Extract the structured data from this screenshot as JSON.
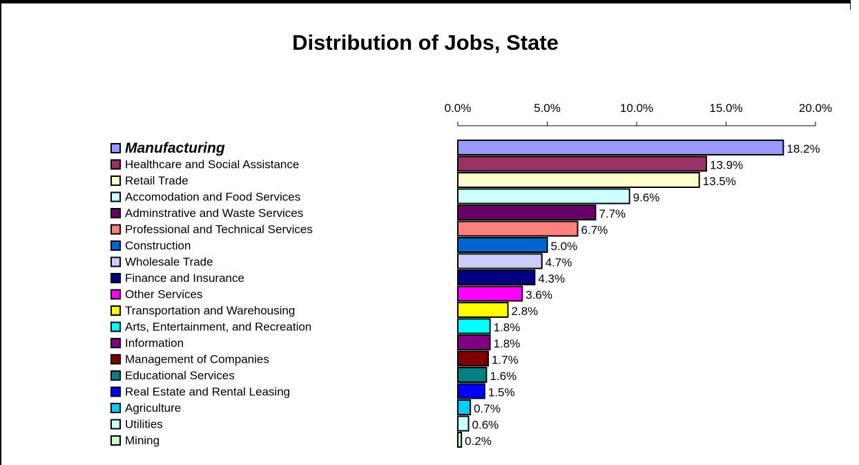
{
  "chart_data": {
    "type": "bar",
    "orientation": "horizontal",
    "title": "Distribution of Jobs, State",
    "xlabel": "",
    "ylabel": "",
    "xlim": [
      0,
      20
    ],
    "ticks": [
      "0.0%",
      "5.0%",
      "10.0%",
      "15.0%",
      "20.0%"
    ],
    "tick_values": [
      0,
      5,
      10,
      15,
      20
    ],
    "legend_position": "left",
    "grid": false,
    "highlighted_category": "Manufacturing",
    "categories": [
      "Manufacturing",
      "Healthcare and Social Assistance",
      "Retail Trade",
      "Accomodation and Food Services",
      "Adminstrative and Waste Services",
      "Professional and Technical Services",
      "Construction",
      "Wholesale Trade",
      "Finance and Insurance",
      "Other Services",
      "Transportation and Warehousing",
      "Arts, Entertainment, and Recreation",
      "Information",
      "Management of Companies",
      "Educational Services",
      "Real Estate and Rental Leasing",
      "Agriculture",
      "Utilities",
      "Mining"
    ],
    "values": [
      18.2,
      13.9,
      13.5,
      9.6,
      7.7,
      6.7,
      5.0,
      4.7,
      4.3,
      3.6,
      2.8,
      1.8,
      1.8,
      1.7,
      1.6,
      1.5,
      0.7,
      0.6,
      0.2
    ],
    "value_labels": [
      "18.2%",
      "13.9%",
      "13.5%",
      "9.6%",
      "7.7%",
      "6.7%",
      "5.0%",
      "4.7%",
      "4.3%",
      "3.6%",
      "2.8%",
      "1.8%",
      "1.8%",
      "1.7%",
      "1.6%",
      "1.5%",
      "0.7%",
      "0.6%",
      "0.2%"
    ],
    "colors": [
      "#9999ff",
      "#993366",
      "#ffffcc",
      "#ccffff",
      "#660066",
      "#ff8080",
      "#0066cc",
      "#ccccff",
      "#000080",
      "#ff00ff",
      "#ffff00",
      "#00ffff",
      "#800080",
      "#800000",
      "#008080",
      "#0000ff",
      "#00ccff",
      "#ccffff",
      "#ccffcc"
    ]
  }
}
